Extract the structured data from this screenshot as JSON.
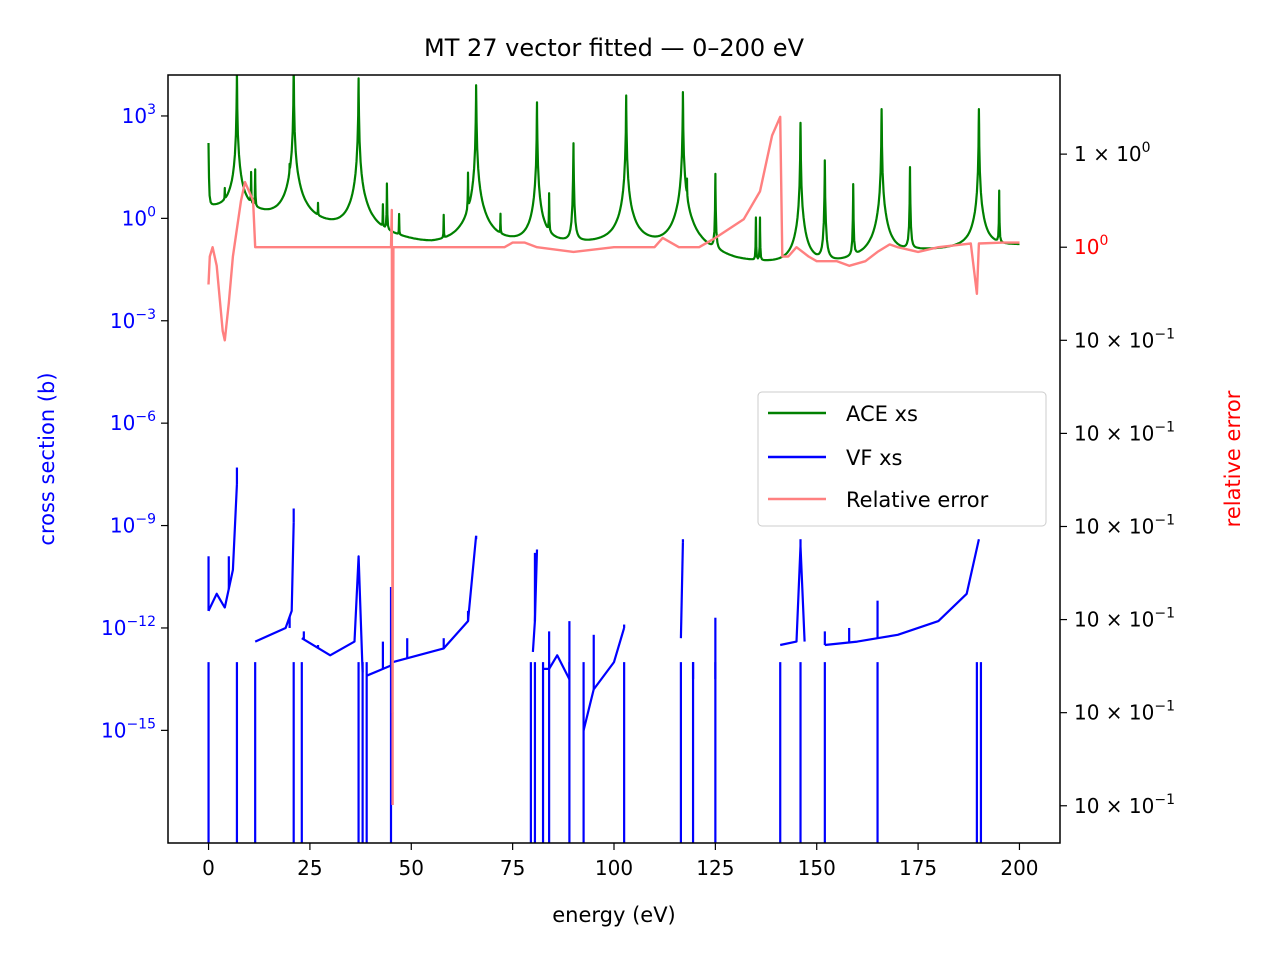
{
  "chart_data": {
    "type": "line",
    "title": "MT 27 vector fitted — 0–200 eV",
    "xlabel": "energy (eV)",
    "ylabel_left": "cross section (b)",
    "ylabel_right": "relative error",
    "xlim": [
      -10,
      210
    ],
    "x_ticks": [
      0,
      25,
      50,
      75,
      100,
      125,
      150,
      175,
      200
    ],
    "y_left_scale": "log",
    "y_left_lim_exp": [
      -18.3,
      4.2
    ],
    "y_left_ticks": [
      {
        "exp": 3,
        "base": "10",
        "sup": "3"
      },
      {
        "exp": 0,
        "base": "10",
        "sup": "0"
      },
      {
        "exp": -3,
        "base": "10",
        "sup": "−3"
      },
      {
        "exp": -6,
        "base": "10",
        "sup": "−6"
      },
      {
        "exp": -9,
        "base": "10",
        "sup": "−9"
      },
      {
        "exp": -12,
        "base": "10",
        "sup": "−12"
      },
      {
        "exp": -15,
        "base": "10",
        "sup": "−15"
      }
    ],
    "y_right_scale": "log",
    "y_right_lim_exp": [
      -0.64,
      0.185
    ],
    "y_right_ticks": [
      {
        "exp": 0.1,
        "text": "1 × 10",
        "sup": "0",
        "color": "#000000"
      },
      {
        "exp": 0.0,
        "text": "10",
        "sup": "0",
        "color": "#ff0000"
      },
      {
        "exp": -0.1,
        "text": "10 × 10",
        "sup": "−1",
        "color": "#000000"
      },
      {
        "exp": -0.2,
        "text": "10 × 10",
        "sup": "−1",
        "color": "#000000"
      },
      {
        "exp": -0.3,
        "text": "10 × 10",
        "sup": "−1",
        "color": "#000000"
      },
      {
        "exp": -0.4,
        "text": "10 × 10",
        "sup": "−1",
        "color": "#000000"
      },
      {
        "exp": -0.5,
        "text": "10 × 10",
        "sup": "−1",
        "color": "#000000"
      },
      {
        "exp": -0.6,
        "text": "10 × 10",
        "sup": "−1",
        "color": "#000000"
      }
    ],
    "left_axis_color": "#0000ff",
    "right_axis_color": "#ff0000",
    "legend_position": "center-right",
    "series": [
      {
        "name": "ACE xs",
        "axis": "left",
        "color": "#008000",
        "baseline_exp": [
          [
            0,
            0.3
          ],
          [
            10,
            0.1
          ],
          [
            30,
            -0.4
          ],
          [
            55,
            -1.0
          ],
          [
            80,
            -0.9
          ],
          [
            105,
            -0.8
          ],
          [
            130,
            -1.5
          ],
          [
            150,
            -1.6
          ],
          [
            175,
            -1.0
          ],
          [
            200,
            -0.8
          ]
        ],
        "peaks": [
          [
            0,
            2.2
          ],
          [
            4,
            0.6
          ],
          [
            7,
            4.3
          ],
          [
            10.5,
            1.3
          ],
          [
            11.5,
            1.4
          ],
          [
            20,
            1.2
          ],
          [
            21,
            4.4
          ],
          [
            27,
            0.2
          ],
          [
            37,
            4.1
          ],
          [
            43,
            0.3
          ],
          [
            44,
            1.0
          ],
          [
            47,
            0.0
          ],
          [
            58,
            0.0
          ],
          [
            64,
            1.3
          ],
          [
            66,
            3.9
          ],
          [
            72,
            0.0
          ],
          [
            81,
            3.4
          ],
          [
            84,
            0.7
          ],
          [
            90,
            2.2
          ],
          [
            103,
            3.6
          ],
          [
            117,
            3.7
          ],
          [
            118,
            1.0
          ],
          [
            125,
            1.3
          ],
          [
            135,
            0.0
          ],
          [
            136,
            0.0
          ],
          [
            146,
            2.8
          ],
          [
            152,
            1.7
          ],
          [
            159,
            1.0
          ],
          [
            166,
            3.2
          ],
          [
            173,
            1.5
          ],
          [
            190,
            3.2
          ],
          [
            195,
            0.8
          ]
        ]
      },
      {
        "name": "VF xs",
        "axis": "left",
        "color": "#0000ff",
        "segments": [
          [
            [
              0,
              -11.5
            ],
            [
              2,
              -11.0
            ],
            [
              3.5,
              -11.3
            ],
            [
              4,
              -11.4
            ],
            [
              6,
              -10.3
            ],
            [
              7,
              -7.8
            ]
          ],
          [
            [
              11.5,
              -12.4
            ],
            [
              19,
              -12.0
            ],
            [
              20.5,
              -11.5
            ],
            [
              21,
              -8.9
            ]
          ],
          [
            [
              23,
              -12.3
            ],
            [
              30,
              -12.8
            ],
            [
              36,
              -12.4
            ],
            [
              37,
              -9.9
            ],
            [
              38,
              -13.3
            ]
          ],
          [
            [
              39,
              -13.4
            ],
            [
              45,
              -13.1
            ]
          ],
          [
            [
              45.5,
              -13.0
            ],
            [
              58,
              -12.6
            ],
            [
              64,
              -11.8
            ],
            [
              66,
              -9.3
            ]
          ],
          [
            [
              80,
              -12.7
            ],
            [
              80.5,
              -11.8
            ],
            [
              81,
              -9.7
            ]
          ],
          [
            [
              82.5,
              -13.2
            ],
            [
              84,
              -13.2
            ],
            [
              86,
              -12.8
            ],
            [
              89,
              -13.5
            ]
          ],
          [
            [
              92.5,
              -15.0
            ],
            [
              95,
              -13.8
            ],
            [
              100,
              -13.0
            ],
            [
              102.5,
              -12.0
            ]
          ],
          [
            [
              116.5,
              -12.3
            ],
            [
              117,
              -9.5
            ]
          ],
          [
            [
              141,
              -12.5
            ],
            [
              145,
              -12.4
            ],
            [
              146,
              -9.6
            ],
            [
              147,
              -12.4
            ]
          ],
          [
            [
              152,
              -12.5
            ],
            [
              160,
              -12.4
            ],
            [
              165,
              -12.3
            ],
            [
              170,
              -12.2
            ],
            [
              180,
              -11.8
            ],
            [
              187,
              -11.0
            ],
            [
              190,
              -9.4
            ]
          ]
        ],
        "spikes": [
          [
            0,
            -9.9
          ],
          [
            5,
            -9.9
          ],
          [
            7,
            -7.3
          ],
          [
            20,
            -12.0
          ],
          [
            21,
            -8.5
          ],
          [
            23.5,
            -12.1
          ],
          [
            27,
            -12.5
          ],
          [
            37,
            -9.9
          ],
          [
            43,
            -12.4
          ],
          [
            45,
            -10.8
          ],
          [
            49,
            -12.3
          ],
          [
            58,
            -12.3
          ],
          [
            64,
            -11.5
          ],
          [
            66,
            -9.4
          ],
          [
            80.5,
            -9.8
          ],
          [
            84,
            -12.1
          ],
          [
            89,
            -11.8
          ],
          [
            95,
            -12.2
          ],
          [
            102.5,
            -11.9
          ],
          [
            117,
            -9.4
          ],
          [
            119.5,
            -13.0
          ],
          [
            125,
            -11.7
          ],
          [
            146,
            -9.4
          ],
          [
            152,
            -12.1
          ],
          [
            158,
            -12.0
          ],
          [
            165,
            -11.2
          ],
          [
            190,
            -9.4
          ]
        ],
        "drops_x": [
          0,
          7,
          11.5,
          21,
          23,
          37,
          38,
          39,
          45,
          79.5,
          80.5,
          82.5,
          84,
          89,
          92.5,
          102.5,
          116.5,
          119.5,
          125,
          141,
          146,
          152,
          165,
          189.5,
          190.5
        ]
      },
      {
        "name": "Relative error",
        "axis": "right",
        "color": "#ff8080",
        "points": [
          [
            0,
            -0.04
          ],
          [
            0.3,
            -0.01
          ],
          [
            1,
            0.0
          ],
          [
            2,
            -0.02
          ],
          [
            3.5,
            -0.09
          ],
          [
            4,
            -0.1
          ],
          [
            5,
            -0.06
          ],
          [
            6,
            -0.01
          ],
          [
            8,
            0.05
          ],
          [
            9,
            0.07
          ],
          [
            10,
            0.06
          ],
          [
            11,
            0.05
          ],
          [
            11.5,
            0.0
          ],
          [
            12,
            0.0
          ],
          [
            20,
            0.0
          ],
          [
            37,
            0.0
          ],
          [
            45,
            0.0
          ],
          [
            45.2,
            0.04
          ],
          [
            45.4,
            -0.5
          ],
          [
            45.6,
            0.0
          ],
          [
            58,
            0.0
          ],
          [
            66,
            0.0
          ],
          [
            70,
            0.0
          ],
          [
            73,
            0.0
          ],
          [
            75,
            0.005
          ],
          [
            78,
            0.005
          ],
          [
            81,
            0.0
          ],
          [
            90,
            -0.005
          ],
          [
            100,
            0.0
          ],
          [
            110,
            0.0
          ],
          [
            112,
            0.01
          ],
          [
            116,
            0.0
          ],
          [
            121,
            0.0
          ],
          [
            125,
            0.01
          ],
          [
            132,
            0.03
          ],
          [
            136,
            0.06
          ],
          [
            139,
            0.12
          ],
          [
            141,
            0.14
          ],
          [
            141.5,
            -0.01
          ],
          [
            143,
            -0.01
          ],
          [
            145,
            0.0
          ],
          [
            148,
            -0.01
          ],
          [
            150,
            -0.015
          ],
          [
            155,
            -0.015
          ],
          [
            158,
            -0.02
          ],
          [
            162,
            -0.015
          ],
          [
            165,
            -0.005
          ],
          [
            168,
            0.003
          ],
          [
            170,
            0.0
          ],
          [
            175,
            -0.005
          ],
          [
            180,
            0.0
          ],
          [
            186,
            0.003
          ],
          [
            188,
            0.004
          ],
          [
            189.5,
            -0.05
          ],
          [
            190,
            0.004
          ],
          [
            196,
            0.005
          ],
          [
            200,
            0.005
          ]
        ]
      }
    ]
  }
}
